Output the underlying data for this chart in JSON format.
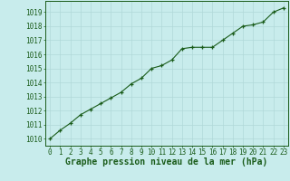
{
  "x": [
    0,
    1,
    2,
    3,
    4,
    5,
    6,
    7,
    8,
    9,
    10,
    11,
    12,
    13,
    14,
    15,
    16,
    17,
    18,
    19,
    20,
    21,
    22,
    23
  ],
  "y": [
    1010.0,
    1010.6,
    1011.1,
    1011.7,
    1012.1,
    1012.5,
    1012.9,
    1013.3,
    1013.9,
    1014.3,
    1015.0,
    1015.2,
    1015.6,
    1016.4,
    1016.5,
    1016.5,
    1016.5,
    1017.0,
    1017.5,
    1018.0,
    1018.1,
    1018.3,
    1019.0,
    1019.3
  ],
  "line_color": "#1a5c1a",
  "marker": "+",
  "bg_color": "#c8ecec",
  "grid_color": "#b0d8d8",
  "xlabel": "Graphe pression niveau de la mer (hPa)",
  "xlabel_color": "#1a5c1a",
  "tick_color": "#1a5c1a",
  "ylim": [
    1009.5,
    1019.8
  ],
  "xlim": [
    -0.5,
    23.5
  ],
  "yticks": [
    1010,
    1011,
    1012,
    1013,
    1014,
    1015,
    1016,
    1017,
    1018,
    1019
  ],
  "xticks": [
    0,
    1,
    2,
    3,
    4,
    5,
    6,
    7,
    8,
    9,
    10,
    11,
    12,
    13,
    14,
    15,
    16,
    17,
    18,
    19,
    20,
    21,
    22,
    23
  ],
  "tick_fontsize": 5.5,
  "xlabel_fontsize": 7,
  "line_width": 0.8,
  "marker_size": 3.5,
  "marker_edge_width": 0.9
}
